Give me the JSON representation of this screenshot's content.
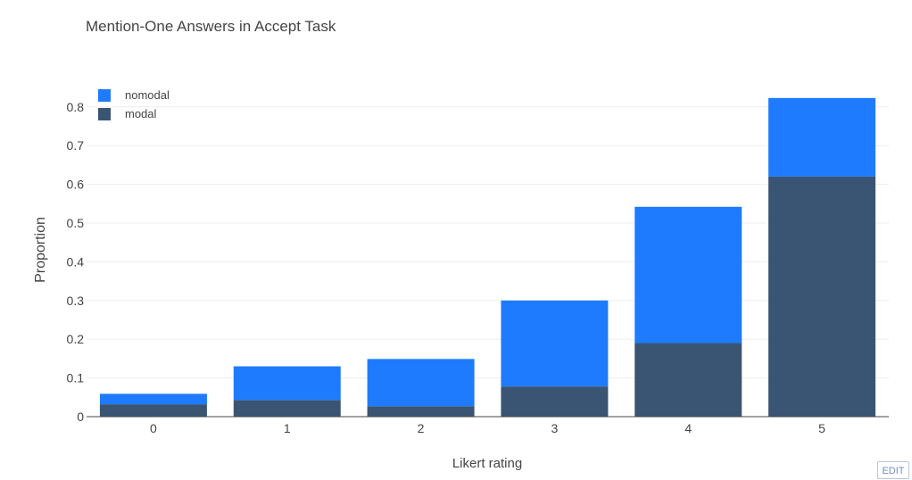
{
  "chart_data": {
    "type": "bar",
    "barmode": "stack",
    "title": "Mention-One Answers in Accept Task",
    "xlabel": "Likert rating",
    "ylabel": "Proportion",
    "categories": [
      "0",
      "1",
      "2",
      "3",
      "4",
      "5"
    ],
    "series": [
      {
        "name": "modal",
        "color": "#3a5573",
        "values": [
          0.032,
          0.043,
          0.027,
          0.078,
          0.19,
          0.62
        ]
      },
      {
        "name": "nomodal",
        "color": "#1f7bfd",
        "values": [
          0.027,
          0.087,
          0.122,
          0.222,
          0.352,
          0.203
        ]
      }
    ],
    "legend": [
      {
        "name": "nomodal",
        "color": "#1f7bfd"
      },
      {
        "name": "modal",
        "color": "#3a5573"
      }
    ],
    "yticks": [
      "0",
      "0.1",
      "0.2",
      "0.3",
      "0.4",
      "0.5",
      "0.6",
      "0.7",
      "0.8"
    ],
    "ylim": [
      0,
      0.86
    ],
    "grid": true,
    "legend_position": "top-left"
  },
  "toolbar": {
    "edit_label": "EDIT"
  }
}
